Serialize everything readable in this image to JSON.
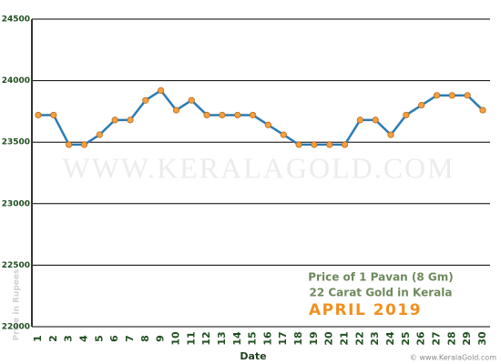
{
  "chart_data": {
    "type": "line",
    "x_label": "Date",
    "y_label": "Price in Rupees",
    "annotations": [
      "Price of 1 Pavan (8 Gm)",
      "22 Carat Gold in Kerala",
      "APRIL 2019"
    ],
    "watermark": "WWW.KERALAGOLD.COM",
    "credit": "© www.KeralaGold.com",
    "categories": [
      "1",
      "2",
      "3",
      "4",
      "5",
      "6",
      "7",
      "8",
      "9",
      "10",
      "11",
      "12",
      "13",
      "14",
      "15",
      "16",
      "17",
      "18",
      "19",
      "20",
      "21",
      "22",
      "23",
      "24",
      "25",
      "26",
      "27",
      "28",
      "29",
      "30"
    ],
    "series": [
      {
        "color": "#2b7bb5",
        "marker_color": "#f5a040",
        "values": [
          23720,
          23720,
          23480,
          23480,
          23560,
          23680,
          23680,
          23840,
          23920,
          23760,
          23840,
          23720,
          23720,
          23720,
          23720,
          23640,
          23560,
          23480,
          23480,
          23480,
          23480,
          23680,
          23680,
          23560,
          23720,
          23800,
          23880,
          23880,
          23880,
          23760
        ]
      }
    ],
    "ylim": [
      22000,
      24500
    ],
    "yticks": [
      22000,
      22500,
      23000,
      23500,
      24000,
      24500
    ],
    "grid": true
  }
}
